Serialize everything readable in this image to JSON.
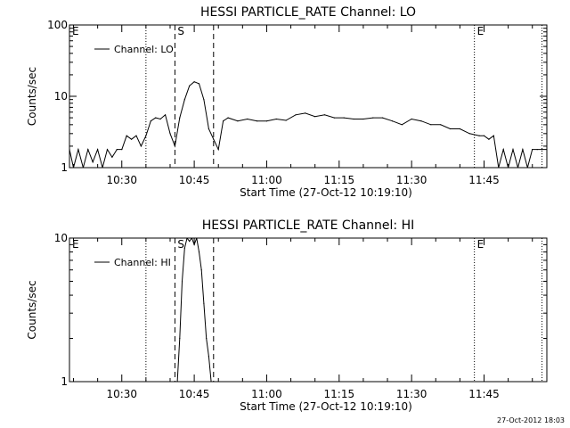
{
  "footer_timestamp": "27-Oct-2012 18:03",
  "chart_data": [
    {
      "type": "line",
      "title": "HESSI PARTICLE_RATE Channel: LO",
      "xlabel": "Start Time (27-Oct-12 10:19:10)",
      "ylabel": "Counts/sec",
      "y_scale": "log",
      "ylim": [
        1,
        100
      ],
      "y_ticks": [
        1,
        10,
        100
      ],
      "y_tick_labels": [
        "1",
        "10",
        "100"
      ],
      "xlim": [
        "10:19:10",
        "11:58:00"
      ],
      "x_ticks": [
        "10:30",
        "10:45",
        "11:00",
        "11:15",
        "11:30",
        "11:45"
      ],
      "legend": {
        "position": "top-left",
        "entries": [
          "Channel: LO"
        ]
      },
      "markers": [
        {
          "label": "E",
          "time": "10:19:10",
          "style": "none"
        },
        {
          "label": "",
          "time": "10:35:00",
          "style": "dotted"
        },
        {
          "label": "S",
          "time": "10:41:00",
          "style": "dashed"
        },
        {
          "label": "",
          "time": "10:49:00",
          "style": "dashed"
        },
        {
          "label": "E",
          "time": "11:43:00",
          "style": "dotted"
        },
        {
          "label": "",
          "time": "11:57:00",
          "style": "dotted"
        }
      ],
      "series": [
        {
          "name": "Channel: LO",
          "x": [
            "10:19:10",
            "10:20:00",
            "10:21:00",
            "10:22:00",
            "10:23:00",
            "10:24:00",
            "10:25:00",
            "10:26:00",
            "10:27:00",
            "10:28:00",
            "10:29:00",
            "10:30:00",
            "10:31:00",
            "10:32:00",
            "10:33:00",
            "10:34:00",
            "10:35:00",
            "10:36:00",
            "10:37:00",
            "10:38:00",
            "10:39:00",
            "10:40:00",
            "10:41:00",
            "10:42:00",
            "10:43:00",
            "10:44:00",
            "10:45:00",
            "10:46:00",
            "10:47:00",
            "10:48:00",
            "10:49:00",
            "10:50:00",
            "10:51:00",
            "10:52:00",
            "10:54:00",
            "10:56:00",
            "10:58:00",
            "11:00:00",
            "11:02:00",
            "11:04:00",
            "11:06:00",
            "11:08:00",
            "11:10:00",
            "11:12:00",
            "11:14:00",
            "11:16:00",
            "11:18:00",
            "11:20:00",
            "11:22:00",
            "11:24:00",
            "11:26:00",
            "11:28:00",
            "11:30:00",
            "11:32:00",
            "11:34:00",
            "11:36:00",
            "11:38:00",
            "11:40:00",
            "11:42:00",
            "11:44:00",
            "11:45:00",
            "11:46:00",
            "11:47:00",
            "11:48:00",
            "11:49:00",
            "11:50:00",
            "11:51:00",
            "11:52:00",
            "11:53:00",
            "11:54:00",
            "11:55:00",
            "11:56:00",
            "11:57:00",
            "11:58:00"
          ],
          "y": [
            1.8,
            1.0,
            1.8,
            1.0,
            1.8,
            1.2,
            1.8,
            1.0,
            1.8,
            1.4,
            1.8,
            1.8,
            2.8,
            2.5,
            2.8,
            2.0,
            2.8,
            4.5,
            5.0,
            4.8,
            5.5,
            3.0,
            2.0,
            5.0,
            9.0,
            14.0,
            16.0,
            15.0,
            9.0,
            3.5,
            2.5,
            1.8,
            4.5,
            5.0,
            4.5,
            4.8,
            4.5,
            4.5,
            4.8,
            4.6,
            5.5,
            5.8,
            5.2,
            5.5,
            5.0,
            5.0,
            4.8,
            4.8,
            5.0,
            5.0,
            4.5,
            4.0,
            4.8,
            4.5,
            4.0,
            4.0,
            3.5,
            3.5,
            3.0,
            2.8,
            2.8,
            2.5,
            2.8,
            1.0,
            1.8,
            1.0,
            1.8,
            1.0,
            1.8,
            1.0,
            1.8,
            1.8,
            1.8,
            1.8
          ]
        }
      ]
    },
    {
      "type": "line",
      "title": "HESSI PARTICLE_RATE Channel: HI",
      "xlabel": "Start Time (27-Oct-12 10:19:10)",
      "ylabel": "Counts/sec",
      "y_scale": "log",
      "ylim": [
        1,
        10
      ],
      "y_ticks": [
        1,
        10
      ],
      "y_tick_labels": [
        "1",
        "10"
      ],
      "xlim": [
        "10:19:10",
        "11:58:00"
      ],
      "x_ticks": [
        "10:30",
        "10:45",
        "11:00",
        "11:15",
        "11:30",
        "11:45"
      ],
      "legend": {
        "position": "top-left",
        "entries": [
          "Channel: HI"
        ]
      },
      "markers": [
        {
          "label": "E",
          "time": "10:19:10",
          "style": "none"
        },
        {
          "label": "",
          "time": "10:35:00",
          "style": "dotted"
        },
        {
          "label": "S",
          "time": "10:41:00",
          "style": "dashed"
        },
        {
          "label": "",
          "time": "10:49:00",
          "style": "dashed"
        },
        {
          "label": "E",
          "time": "11:43:00",
          "style": "dotted"
        },
        {
          "label": "",
          "time": "11:57:00",
          "style": "dotted"
        }
      ],
      "series": [
        {
          "name": "Channel: HI",
          "x": [
            "10:41:30",
            "10:42:00",
            "10:42:30",
            "10:43:00",
            "10:43:30",
            "10:44:00",
            "10:44:30",
            "10:45:00",
            "10:45:30",
            "10:46:00",
            "10:46:30",
            "10:47:00",
            "10:47:30",
            "10:48:00",
            "10:48:30"
          ],
          "y": [
            1.0,
            2.0,
            5.0,
            8.5,
            10.0,
            9.5,
            10.0,
            9.0,
            10.0,
            8.0,
            6.0,
            3.5,
            2.0,
            1.5,
            1.0
          ]
        }
      ]
    }
  ]
}
